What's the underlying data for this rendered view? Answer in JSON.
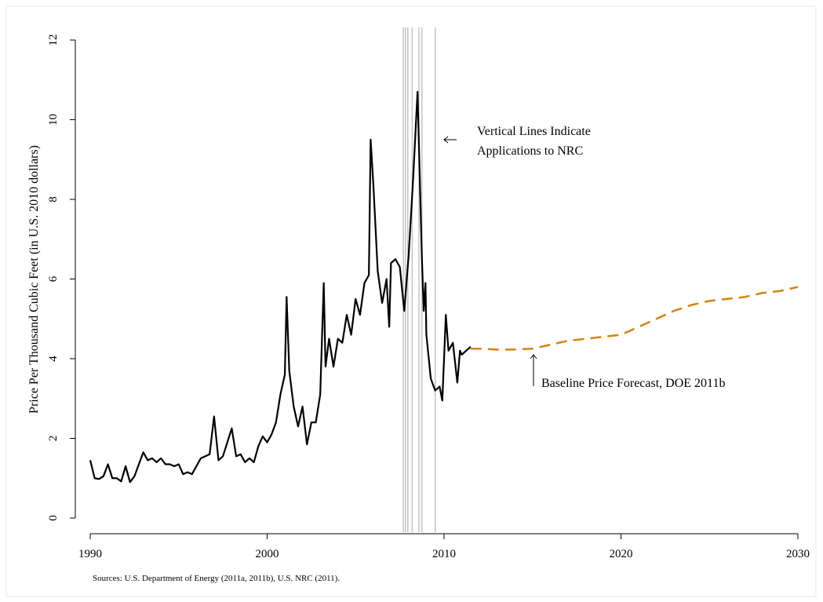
{
  "chart_data": {
    "type": "line",
    "y_label": "Price Per Thousand Cubic Feet (in U.S. 2010 dollars)",
    "source": "Sources: U.S. Department of Energy (2011a, 2011b), U.S. NRC (2011).",
    "xlim": [
      1990,
      2030
    ],
    "xticks": [
      1990,
      2000,
      2010,
      2020,
      2030
    ],
    "ylim": [
      0,
      12
    ],
    "yticks": [
      0,
      2,
      4,
      6,
      8,
      10,
      12
    ],
    "vertical_lines": {
      "color": "#c4c4c4",
      "x": [
        2007.7,
        2007.82,
        2007.95,
        2008.2,
        2008.58,
        2008.75,
        2009.5
      ]
    },
    "series": [
      {
        "color": "#000000",
        "x": [
          1990.0,
          1990.25,
          1990.5,
          1990.75,
          1991.0,
          1991.25,
          1991.5,
          1991.75,
          1992.0,
          1992.25,
          1992.5,
          1992.75,
          1993.0,
          1993.25,
          1993.5,
          1993.75,
          1994.0,
          1994.25,
          1994.5,
          1994.75,
          1995.0,
          1995.25,
          1995.5,
          1995.75,
          1996.0,
          1996.25,
          1996.5,
          1996.75,
          1997.0,
          1997.25,
          1997.5,
          1997.75,
          1998.0,
          1998.25,
          1998.5,
          1998.75,
          1999.0,
          1999.25,
          1999.5,
          1999.75,
          2000.0,
          2000.25,
          2000.5,
          2000.75,
          2001.0,
          2001.1,
          2001.25,
          2001.5,
          2001.75,
          2002.0,
          2002.25,
          2002.5,
          2002.75,
          2003.0,
          2003.2,
          2003.3,
          2003.5,
          2003.75,
          2004.0,
          2004.25,
          2004.5,
          2004.75,
          2005.0,
          2005.25,
          2005.5,
          2005.75,
          2005.85,
          2006.0,
          2006.25,
          2006.5,
          2006.75,
          2006.9,
          2007.0,
          2007.25,
          2007.5,
          2007.75,
          2008.0,
          2008.25,
          2008.5,
          2008.75,
          2008.85,
          2008.95,
          2009.0,
          2009.25,
          2009.5,
          2009.75,
          2009.9,
          2010.0,
          2010.1,
          2010.25,
          2010.5,
          2010.75,
          2010.9,
          2011.0,
          2011.25,
          2011.5
        ],
        "values": [
          1.45,
          1.0,
          0.98,
          1.05,
          1.35,
          1.0,
          1.0,
          0.92,
          1.3,
          0.9,
          1.05,
          1.35,
          1.65,
          1.45,
          1.5,
          1.4,
          1.5,
          1.35,
          1.35,
          1.3,
          1.35,
          1.1,
          1.15,
          1.1,
          1.3,
          1.5,
          1.55,
          1.6,
          2.55,
          1.45,
          1.55,
          1.9,
          2.25,
          1.55,
          1.6,
          1.4,
          1.5,
          1.4,
          1.8,
          2.05,
          1.9,
          2.1,
          2.4,
          3.1,
          3.6,
          5.55,
          3.7,
          2.8,
          2.3,
          2.8,
          1.85,
          2.4,
          2.4,
          3.1,
          5.9,
          3.8,
          4.5,
          3.8,
          4.5,
          4.4,
          5.1,
          4.6,
          5.5,
          5.1,
          5.9,
          6.1,
          9.5,
          8.4,
          6.2,
          5.4,
          6.0,
          4.8,
          6.4,
          6.5,
          6.3,
          5.2,
          6.6,
          8.5,
          10.7,
          6.5,
          5.2,
          5.9,
          4.6,
          3.5,
          3.2,
          3.3,
          2.95,
          4.0,
          5.1,
          4.2,
          4.4,
          3.4,
          4.2,
          4.1,
          4.2,
          4.3
        ]
      },
      {
        "color": "#d9820f",
        "dashed": true,
        "x": [
          2011.5,
          2012,
          2013,
          2014,
          2015,
          2016,
          2017,
          2018,
          2019,
          2020,
          2021,
          2022,
          2023,
          2024,
          2025,
          2026,
          2027,
          2028,
          2029,
          2030
        ],
        "values": [
          4.25,
          4.25,
          4.23,
          4.23,
          4.25,
          4.35,
          4.45,
          4.5,
          4.55,
          4.6,
          4.8,
          5.0,
          5.2,
          5.35,
          5.45,
          5.5,
          5.55,
          5.65,
          5.7,
          5.8
        ]
      }
    ],
    "annotations": [
      {
        "lines": [
          "Vertical Lines Indicate",
          "Applications to NRC"
        ]
      },
      {
        "text": "Baseline Price Forecast, DOE 2011b"
      }
    ]
  }
}
